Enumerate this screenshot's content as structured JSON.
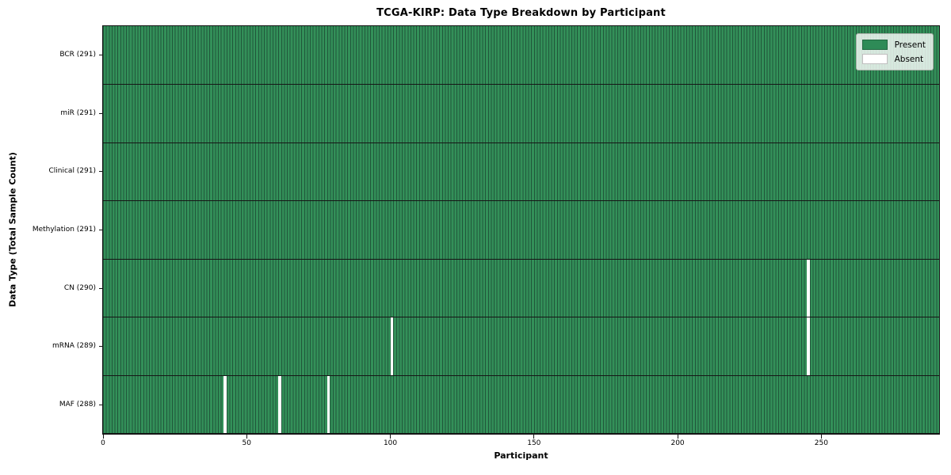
{
  "chart_data": {
    "type": "heatmap",
    "title": "TCGA-KIRP: Data Type Breakdown by Participant",
    "xlabel": "Participant",
    "ylabel": "Data Type (Total Sample Count)",
    "x_ticks": [
      0,
      50,
      100,
      150,
      200,
      250
    ],
    "x_range": [
      0,
      291
    ],
    "n_participants": 291,
    "rows": [
      {
        "label": "BCR (291)",
        "data_type": "BCR",
        "total_samples": 291,
        "absent_participants": []
      },
      {
        "label": "miR (291)",
        "data_type": "miR",
        "total_samples": 291,
        "absent_participants": []
      },
      {
        "label": "Clinical (291)",
        "data_type": "Clinical",
        "total_samples": 291,
        "absent_participants": []
      },
      {
        "label": "Methylation (291)",
        "data_type": "Methylation",
        "total_samples": 291,
        "absent_participants": []
      },
      {
        "label": "CN (290)",
        "data_type": "CN",
        "total_samples": 290,
        "absent_participants": [
          245
        ]
      },
      {
        "label": "mRNA (289)",
        "data_type": "mRNA",
        "total_samples": 289,
        "absent_participants": [
          100,
          245
        ]
      },
      {
        "label": "MAF (288)",
        "data_type": "MAF",
        "total_samples": 288,
        "absent_participants": [
          42,
          61,
          78
        ]
      }
    ],
    "legend": [
      {
        "label": "Present",
        "color": "#2e8b57"
      },
      {
        "label": "Absent",
        "color": "#ffffff"
      }
    ],
    "colors": {
      "present_face": "#339059",
      "present_edge": "#20563a",
      "absent": "#ffffff",
      "separator": "#161616",
      "spine": "#141414",
      "legend_bg": "rgba(255,255,255,0.8)",
      "legend_border": "#aab3aa"
    },
    "layout": {
      "legend_position": "upper right",
      "grid": false
    }
  }
}
